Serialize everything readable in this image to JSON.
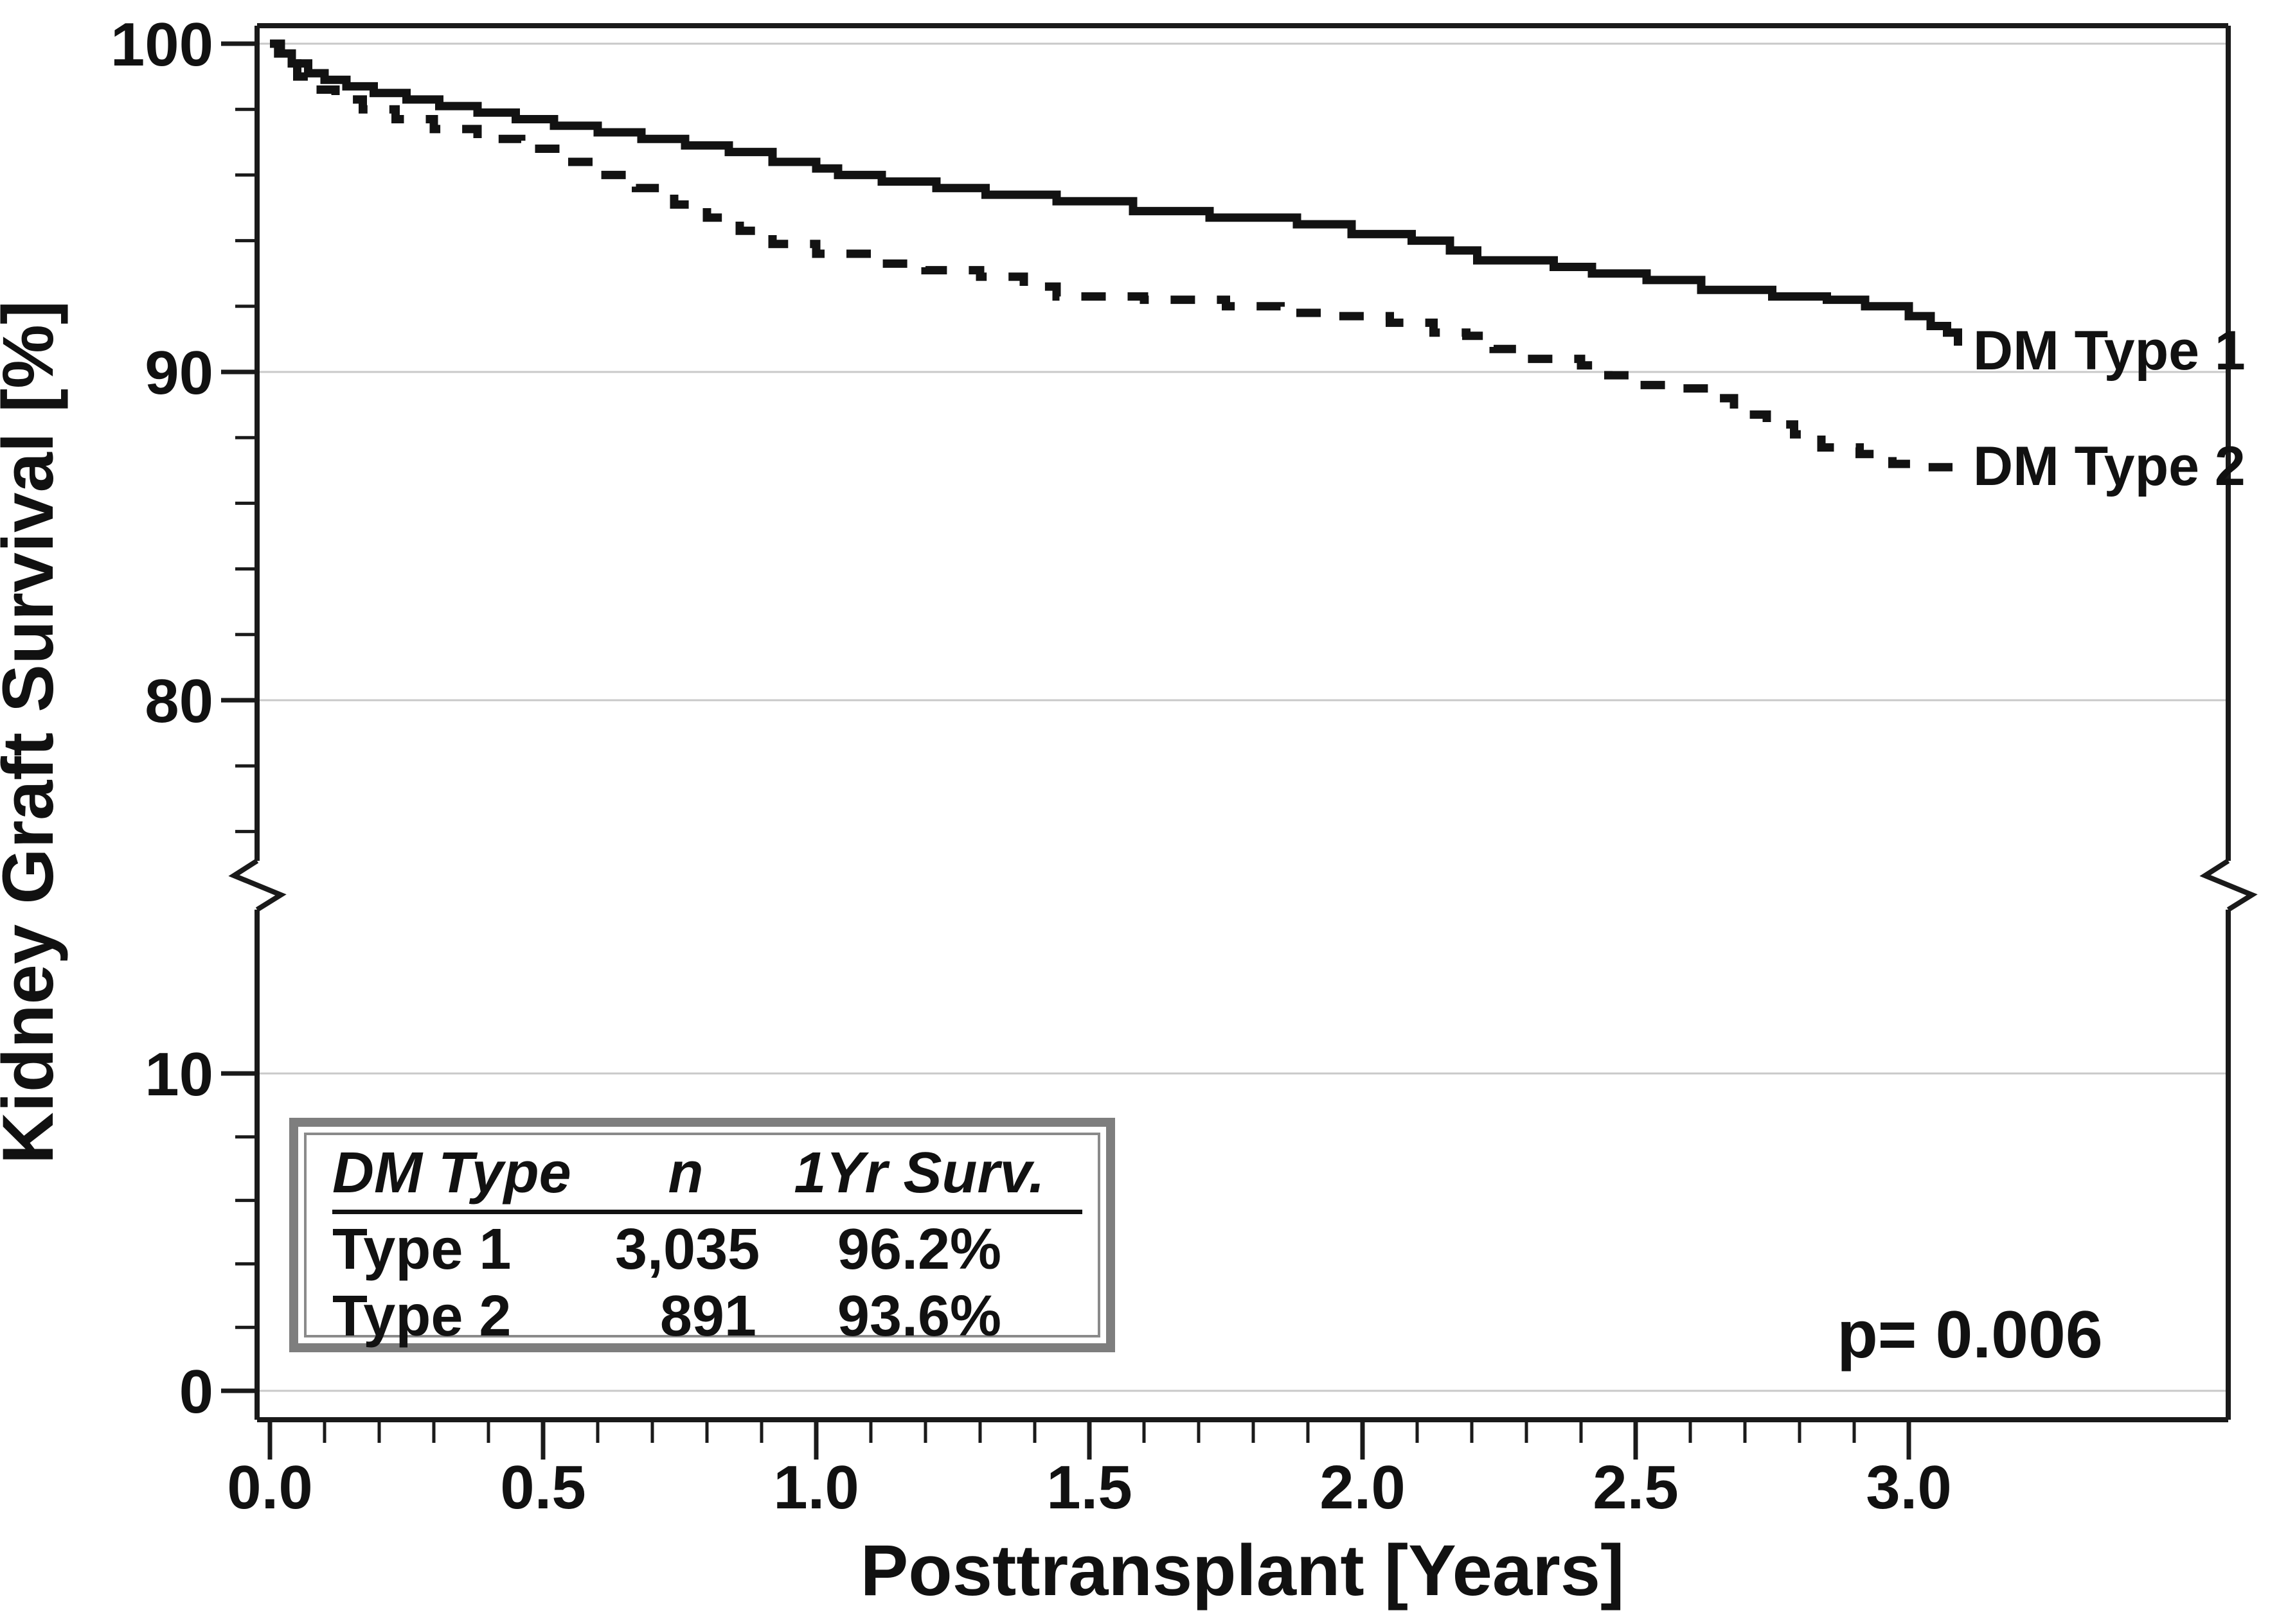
{
  "chart_data": {
    "type": "line",
    "subtype": "kaplan-meier-step-curves",
    "title": "",
    "xlabel": "Posttransplant [Years]",
    "ylabel": "Kidney Graft Survival [%]",
    "x_tick_labels": [
      "0.0",
      "0.5",
      "1.0",
      "1.5",
      "2.0",
      "2.5",
      "3.0"
    ],
    "x_ticks_major": [
      0,
      0.5,
      1.0,
      1.5,
      2.0,
      2.5,
      3.0
    ],
    "x_minor_step": 0.1,
    "x_minor_max": 3.0,
    "xlim": [
      0,
      3.6
    ],
    "y_axis": {
      "broken": true,
      "break_between": [
        15,
        75
      ],
      "upper_segment_range": [
        75,
        100
      ],
      "lower_segment_range": [
        0,
        15
      ],
      "major_ticks": [
        100,
        90,
        80,
        10,
        0
      ],
      "major_tick_labels": [
        "100",
        "90",
        "80",
        "10",
        "0"
      ],
      "minor_ticks_upper": [
        98,
        96,
        94,
        92,
        88,
        86,
        84,
        82,
        78,
        76
      ],
      "minor_ticks_lower": [
        8,
        6,
        4,
        2
      ],
      "gridline_values": [
        100,
        90,
        80,
        10,
        0
      ]
    },
    "legend_position": "end-of-curve-labels",
    "grid": "horizontal-major-only",
    "series": [
      {
        "name": "DM Type 1",
        "style": "solid",
        "n": "3,035",
        "one_year_survival": "96.2%",
        "points": [
          [
            0,
            100
          ],
          [
            0.015,
            99.7
          ],
          [
            0.04,
            99.4
          ],
          [
            0.07,
            99.1
          ],
          [
            0.1,
            98.9
          ],
          [
            0.14,
            98.7
          ],
          [
            0.19,
            98.5
          ],
          [
            0.25,
            98.3
          ],
          [
            0.31,
            98.1
          ],
          [
            0.38,
            97.9
          ],
          [
            0.45,
            97.7
          ],
          [
            0.52,
            97.5
          ],
          [
            0.6,
            97.3
          ],
          [
            0.68,
            97.1
          ],
          [
            0.76,
            96.9
          ],
          [
            0.84,
            96.7
          ],
          [
            0.92,
            96.4
          ],
          [
            1.0,
            96.2
          ],
          [
            1.04,
            96.0
          ],
          [
            1.12,
            95.8
          ],
          [
            1.22,
            95.6
          ],
          [
            1.31,
            95.4
          ],
          [
            1.44,
            95.2
          ],
          [
            1.58,
            94.9
          ],
          [
            1.72,
            94.7
          ],
          [
            1.88,
            94.5
          ],
          [
            1.98,
            94.2
          ],
          [
            2.09,
            94.0
          ],
          [
            2.16,
            93.7
          ],
          [
            2.21,
            93.4
          ],
          [
            2.35,
            93.2
          ],
          [
            2.42,
            93.0
          ],
          [
            2.52,
            92.8
          ],
          [
            2.62,
            92.5
          ],
          [
            2.75,
            92.3
          ],
          [
            2.85,
            92.2
          ],
          [
            2.92,
            92.0
          ],
          [
            3.0,
            91.7
          ],
          [
            3.04,
            91.4
          ],
          [
            3.07,
            91.2
          ],
          [
            3.09,
            90.8
          ]
        ]
      },
      {
        "name": "DM Type 2",
        "style": "dashed",
        "n": "891",
        "one_year_survival": "93.6%",
        "points": [
          [
            0,
            100
          ],
          [
            0.02,
            99.4
          ],
          [
            0.05,
            99.0
          ],
          [
            0.08,
            98.6
          ],
          [
            0.12,
            98.3
          ],
          [
            0.17,
            98.0
          ],
          [
            0.23,
            97.7
          ],
          [
            0.3,
            97.4
          ],
          [
            0.38,
            97.1
          ],
          [
            0.46,
            96.8
          ],
          [
            0.53,
            96.4
          ],
          [
            0.6,
            96.0
          ],
          [
            0.67,
            95.6
          ],
          [
            0.74,
            95.1
          ],
          [
            0.8,
            94.7
          ],
          [
            0.86,
            94.3
          ],
          [
            0.92,
            93.9
          ],
          [
            1.0,
            93.6
          ],
          [
            1.1,
            93.3
          ],
          [
            1.2,
            93.1
          ],
          [
            1.3,
            92.9
          ],
          [
            1.38,
            92.6
          ],
          [
            1.44,
            92.3
          ],
          [
            1.6,
            92.2
          ],
          [
            1.75,
            92.0
          ],
          [
            1.85,
            91.8
          ],
          [
            1.95,
            91.7
          ],
          [
            2.05,
            91.5
          ],
          [
            2.13,
            91.2
          ],
          [
            2.19,
            91.1
          ],
          [
            2.24,
            90.7
          ],
          [
            2.29,
            90.4
          ],
          [
            2.4,
            90.2
          ],
          [
            2.45,
            89.9
          ],
          [
            2.5,
            89.6
          ],
          [
            2.56,
            89.5
          ],
          [
            2.64,
            89.2
          ],
          [
            2.68,
            88.7
          ],
          [
            2.74,
            88.4
          ],
          [
            2.79,
            88.1
          ],
          [
            2.84,
            87.7
          ],
          [
            2.91,
            87.5
          ],
          [
            2.97,
            87.2
          ],
          [
            3.02,
            87.1
          ],
          [
            3.08,
            87.1
          ]
        ]
      }
    ],
    "annotations": {
      "p_value": "p= 0.006"
    },
    "inset_table": {
      "headers": [
        "DM Type",
        "n",
        "1Yr Surv."
      ],
      "rows": [
        [
          "Type 1",
          "3,035",
          "96.2%"
        ],
        [
          "Type 2",
          "891",
          "93.6%"
        ]
      ]
    }
  },
  "colors": {
    "curve": "#121212",
    "frame": "#1a1a1a",
    "grid": "#c9c9c9",
    "text": "#111111",
    "table_border_outer": "#7e7e7e",
    "table_border_inner": "#8a8a8a",
    "background": "#ffffff"
  }
}
